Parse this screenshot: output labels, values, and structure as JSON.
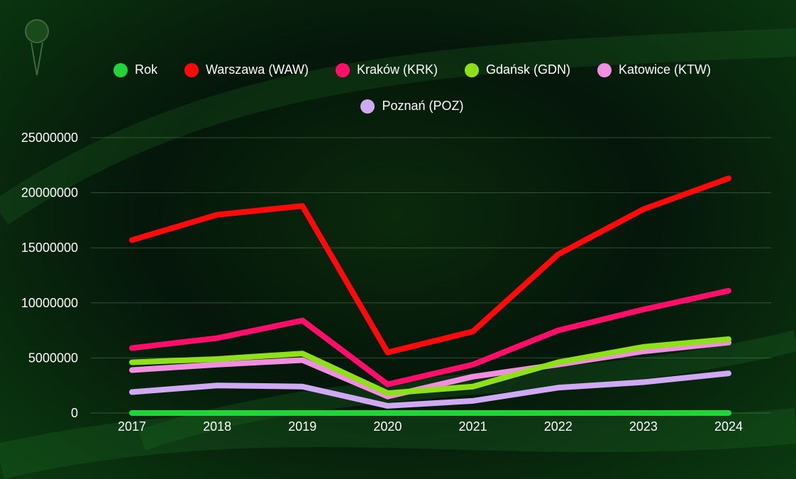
{
  "chart_data": {
    "type": "line",
    "title": "",
    "xlabel": "",
    "ylabel": "",
    "x": [
      "2017",
      "2018",
      "2019",
      "2020",
      "2021",
      "2022",
      "2023",
      "2024"
    ],
    "ylim": [
      0,
      25000000
    ],
    "yticks": [
      0,
      5000000,
      10000000,
      15000000,
      20000000,
      25000000
    ],
    "ytick_labels": [
      "0",
      "5000000",
      "10000000",
      "15000000",
      "20000000",
      "25000000"
    ],
    "grid": true,
    "legend_position": "top",
    "series": [
      {
        "name": "Rok",
        "color": "#22d43a",
        "values": [
          2017,
          2018,
          2019,
          2020,
          2021,
          2022,
          2023,
          2024
        ]
      },
      {
        "name": "Warszawa (WAW)",
        "color": "#ff0a0a",
        "values": [
          15700000,
          18000000,
          18800000,
          5500000,
          7400000,
          14400000,
          18500000,
          21300000
        ]
      },
      {
        "name": "Kraków (KRK)",
        "color": "#ff0f6a",
        "values": [
          5900000,
          6800000,
          8400000,
          2600000,
          4400000,
          7500000,
          9400000,
          11100000
        ]
      },
      {
        "name": "Gdańsk (GDN)",
        "color": "#8fe01a",
        "values": [
          4600000,
          4900000,
          5400000,
          1800000,
          2400000,
          4600000,
          6000000,
          6700000
        ]
      },
      {
        "name": "Katowice (KTW)",
        "color": "#f08ee0",
        "values": [
          3900000,
          4400000,
          4800000,
          1500000,
          3300000,
          4400000,
          5600000,
          6400000
        ]
      },
      {
        "name": "Poznań (POZ)",
        "color": "#cfa9f2",
        "values": [
          1900000,
          2500000,
          2400000,
          650000,
          1100000,
          2300000,
          2800000,
          3600000
        ]
      }
    ]
  }
}
